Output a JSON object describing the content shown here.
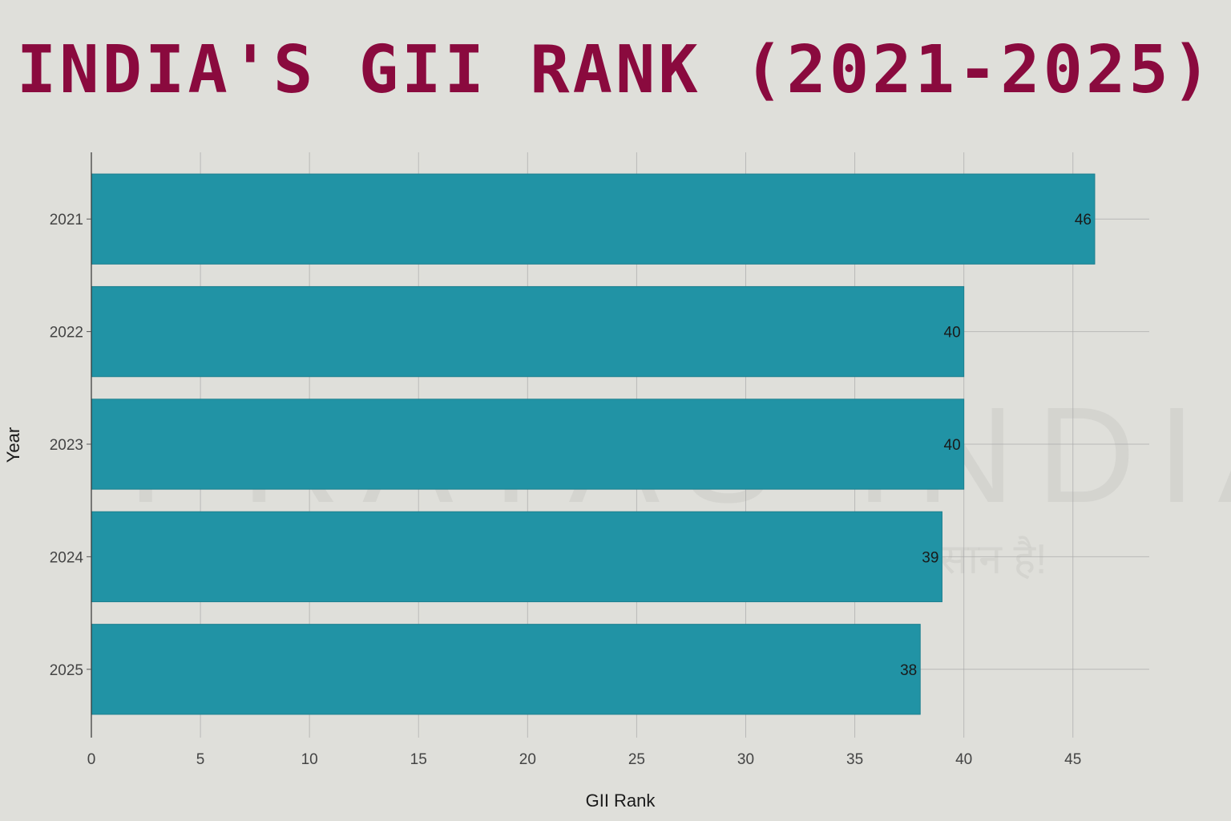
{
  "title": "INDIA'S GII RANK (2021-2025)",
  "colors": {
    "title": "#8a0a3e",
    "bar": "#2193a5",
    "bar_stroke": "#1c7f8f",
    "background": "#dfdfda",
    "grid": "#aaaaaa",
    "text": "#1a1a1a",
    "tick_text": "#444444"
  },
  "watermark": {
    "brand": "PRAYAS INDIA",
    "tagline": "Exam आसान है!"
  },
  "chart_data": {
    "type": "bar",
    "orientation": "horizontal",
    "categories": [
      "2021",
      "2022",
      "2023",
      "2024",
      "2025"
    ],
    "values": [
      46,
      40,
      40,
      39,
      38
    ],
    "data_labels": [
      "46",
      "40",
      "40",
      "39",
      "38"
    ],
    "xlabel": "GII Rank",
    "ylabel": "Year",
    "xlim": [
      0,
      48.5
    ],
    "xticks": [
      0,
      5,
      10,
      15,
      20,
      25,
      30,
      35,
      40,
      45
    ],
    "grid": true,
    "legend": "none"
  }
}
